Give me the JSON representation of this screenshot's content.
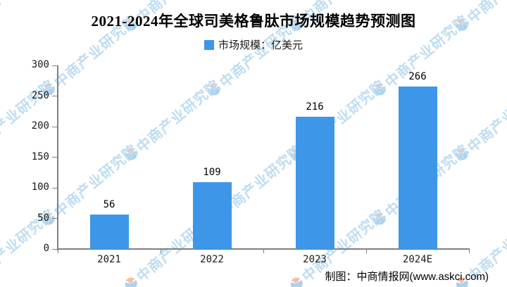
{
  "title": "2021-2024年全球司美格鲁肽市场规模趋势预测图",
  "legend": {
    "label": "市场规模：亿美元",
    "swatch_color": "#3E96E9"
  },
  "chart_data": {
    "type": "bar",
    "categories": [
      "2021",
      "2022",
      "2023",
      "2024E"
    ],
    "values": [
      56,
      109,
      216,
      266
    ],
    "series": [
      {
        "name": "市场规模",
        "values": [
          56,
          109,
          216,
          266
        ]
      }
    ],
    "unit": "亿美元",
    "title": "2021-2024年全球司美格鲁肽市场规模趋势预测图",
    "xlabel": "",
    "ylabel": "",
    "ylim": [
      0,
      300
    ],
    "yticks": [
      0,
      50,
      100,
      150,
      200,
      250,
      300
    ],
    "grid": false,
    "legend_position": "top-center",
    "bar_color": "#3E96E9",
    "axis_color": "#7F7F7F",
    "label_color": "#1A1A1A"
  },
  "attribution": "制图：中商情报网(www.askci.com)",
  "watermark": {
    "text": "中商产业研究院",
    "text_color": "#BFDDF1",
    "logo_blue": "#A9D3EE",
    "logo_orange": "#F5C0AB"
  }
}
